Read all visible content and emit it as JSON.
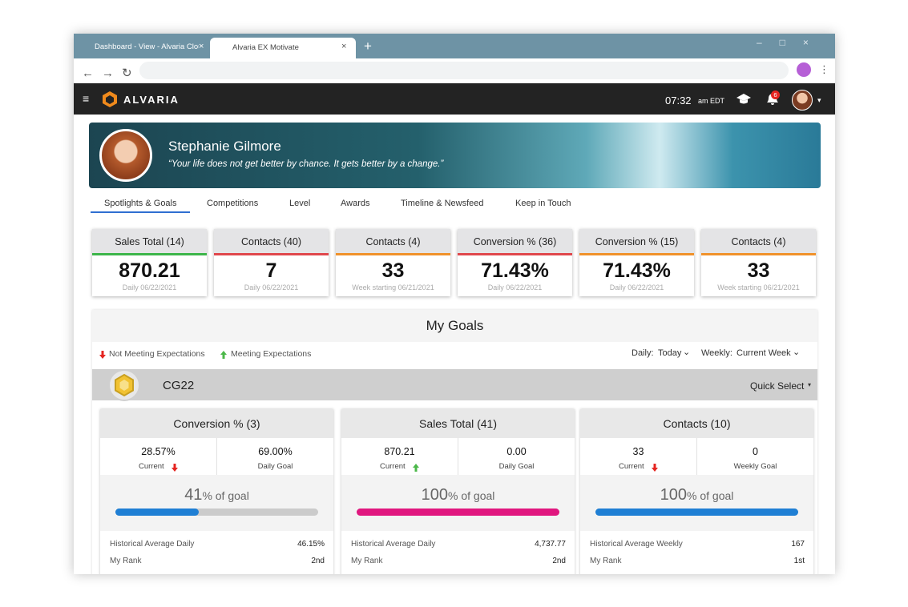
{
  "browser": {
    "tabs": [
      "Dashboard - View - Alvaria Clou",
      "Alvaria EX Motivate"
    ]
  },
  "header": {
    "logo": "ALVARIA",
    "time": "07:32",
    "time_suffix": "am EDT",
    "notifications": 6
  },
  "profile": {
    "name": "Stephanie Gilmore",
    "quote": "“Your life does not get better by chance. It gets better by a change.”"
  },
  "nav": [
    "Spotlights & Goals",
    "Competitions",
    "Level",
    "Awards",
    "Timeline & Newsfeed",
    "Keep in Touch"
  ],
  "stats": [
    {
      "title": "Sales Total (14)",
      "value": "870.21",
      "period": "Daily 06/22/2021",
      "color": "#3db54a"
    },
    {
      "title": "Contacts (40)",
      "value": "7",
      "period": "Daily 06/22/2021",
      "color": "#e0474c"
    },
    {
      "title": "Contacts (4)",
      "value": "33",
      "period": "Week starting 06/21/2021",
      "color": "#f0922b"
    },
    {
      "title": "Conversion % (36)",
      "value": "71.43%",
      "period": "Daily 06/22/2021",
      "color": "#e0474c"
    },
    {
      "title": "Conversion % (15)",
      "value": "71.43%",
      "period": "Daily 06/22/2021",
      "color": "#f0922b"
    },
    {
      "title": "Contacts (4)",
      "value": "33",
      "period": "Week starting 06/21/2021",
      "color": "#f0922b"
    }
  ],
  "goals": {
    "title": "My Goals",
    "legend": [
      "Not Meeting Expectations",
      "Meeting Expectations"
    ],
    "daily_label": "Daily:",
    "daily": "Today",
    "weekly_label": "Weekly:",
    "weekly": "Current Week",
    "group": "CG22",
    "quick_select": "Quick Select",
    "cards": [
      {
        "title": "Conversion % (3)",
        "current": "28.57%",
        "current_label": "Current",
        "trend": "down",
        "goal": "69.00%",
        "goal_label": "Daily Goal",
        "percent": 41,
        "percent_suffix": "% of goal",
        "color": "#1f7fd4",
        "rows": [
          [
            "Historical Average Daily",
            "46.15%"
          ],
          [
            "My Rank",
            "2nd"
          ]
        ]
      },
      {
        "title": "Sales Total (41)",
        "current": "870.21",
        "current_label": "Current",
        "trend": "up",
        "goal": "0.00",
        "goal_label": "Daily Goal",
        "percent": 100,
        "percent_suffix": "% of goal",
        "color": "#e0177f",
        "rows": [
          [
            "Historical Average Daily",
            "4,737.77"
          ],
          [
            "My Rank",
            "2nd"
          ]
        ]
      },
      {
        "title": "Contacts (10)",
        "current": "33",
        "current_label": "Current",
        "trend": "down",
        "goal": "0",
        "goal_label": "Weekly Goal",
        "percent": 100,
        "percent_suffix": "% of goal",
        "color": "#1f7fd4",
        "rows": [
          [
            "Historical Average Weekly",
            "167"
          ],
          [
            "My Rank",
            "1st"
          ]
        ]
      }
    ]
  }
}
